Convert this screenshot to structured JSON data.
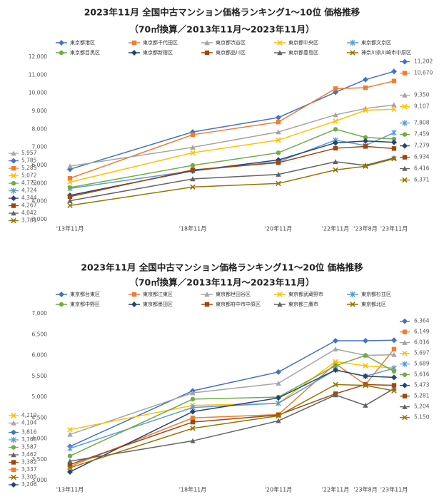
{
  "chart_data": [
    {
      "type": "line",
      "title": "2023年11月 全国中古マンション価格ランキング1～10位 価格推移",
      "subtitle": "（70㎡換算／2013年11月～2023年11月）",
      "categories": [
        "'13年11月",
        "'18年11月",
        "'20年11月",
        "'22年11月",
        "'23年8月",
        "'23年11月"
      ],
      "ylim": [
        3000,
        12000
      ],
      "yticks": [
        {
          "value": 3000,
          "label": "3,000"
        },
        {
          "value": 4000,
          "label": "4,000"
        },
        {
          "value": 5000,
          "label": "5,000"
        },
        {
          "value": 6000,
          "label": "6,000"
        },
        {
          "value": 7000,
          "label": "7,000"
        },
        {
          "value": 8000,
          "label": "8,000"
        },
        {
          "value": 9000,
          "label": "9,000"
        },
        {
          "value": 10000,
          "label": "10,000"
        },
        {
          "value": 11000,
          "label": "11,000"
        },
        {
          "value": 12000,
          "label": "12,000"
        }
      ],
      "grid": false,
      "series": [
        {
          "name": "東京都港区",
          "color": "#4472c4",
          "values": [
            5785,
            7850,
            8650,
            10050,
            10750,
            11202
          ],
          "value_labels": [
            "5,785",
            null,
            null,
            null,
            null,
            "11,202"
          ]
        },
        {
          "name": "東京都千代田区",
          "color": "#ed7d31",
          "values": [
            5285,
            7700,
            8400,
            10250,
            10300,
            10670
          ],
          "value_labels": [
            "5,285",
            null,
            null,
            null,
            null,
            "10,670"
          ]
        },
        {
          "name": "東京都渋谷区",
          "color": "#a5a5a5",
          "values": [
            5957,
            7000,
            7850,
            8800,
            9150,
            9350
          ],
          "value_labels": [
            "5,957",
            null,
            null,
            null,
            null,
            "9,350"
          ]
        },
        {
          "name": "東京都中央区",
          "color": "#ffc000",
          "values": [
            5072,
            6700,
            7400,
            8450,
            9050,
            9107
          ],
          "value_labels": [
            "5,072",
            null,
            null,
            null,
            null,
            "9,107"
          ]
        },
        {
          "name": "東京都文京区",
          "color": "#5b9bd5",
          "values": [
            4724,
            5700,
            6200,
            7400,
            7100,
            7808
          ],
          "value_labels": [
            "4,724",
            null,
            null,
            null,
            null,
            "7,808"
          ]
        },
        {
          "name": "東京都目黒区",
          "color": "#70ad47",
          "values": [
            4773,
            6000,
            6700,
            8000,
            7550,
            7459
          ],
          "value_labels": [
            "4,773",
            null,
            null,
            null,
            null,
            "7,459"
          ]
        },
        {
          "name": "東京都新宿区",
          "color": "#264478",
          "values": [
            4344,
            5700,
            6300,
            7250,
            7350,
            7279
          ],
          "value_labels": [
            "4,344",
            null,
            null,
            null,
            null,
            "7,279"
          ]
        },
        {
          "name": "東京都品川区",
          "color": "#9e480e",
          "values": [
            4267,
            5750,
            6150,
            6950,
            7050,
            6934
          ],
          "value_labels": [
            "4,267",
            null,
            null,
            null,
            null,
            "6,934"
          ]
        },
        {
          "name": "東京都豊島区",
          "color": "#636363",
          "values": [
            4042,
            5250,
            5500,
            6200,
            6000,
            6416
          ],
          "value_labels": [
            "4,042",
            null,
            null,
            null,
            null,
            "6,416"
          ]
        },
        {
          "name": "神奈川県川崎市中原区",
          "color": "#997300",
          "values": [
            3781,
            4800,
            5000,
            5750,
            5950,
            6371
          ],
          "value_labels": [
            "3,781",
            null,
            null,
            null,
            null,
            "6,371"
          ]
        }
      ]
    },
    {
      "type": "line",
      "title": "2023年11月 全国中古マンション価格ランキング11～20位 価格推移",
      "subtitle": "（70㎡換算／2013年11月～2023年11月）",
      "categories": [
        "'13年11月",
        "'18年11月",
        "'20年11月",
        "'22年11月",
        "'23年8月",
        "'23年11月"
      ],
      "ylim": [
        3000,
        7000
      ],
      "yticks": [
        {
          "value": 3000,
          "label": "3,000"
        },
        {
          "value": 3500,
          "label": "3,500"
        },
        {
          "value": 4000,
          "label": "4,000"
        },
        {
          "value": 4500,
          "label": "4,500"
        },
        {
          "value": 5000,
          "label": "5,000"
        },
        {
          "value": 5500,
          "label": "5,500"
        },
        {
          "value": 6000,
          "label": "6,000"
        },
        {
          "value": 6500,
          "label": "6,500"
        },
        {
          "value": 7000,
          "label": "7,000"
        }
      ],
      "grid": false,
      "series": [
        {
          "name": "東京都台東区",
          "color": "#4472c4",
          "values": [
            3816,
            5150,
            5600,
            6350,
            6350,
            6364
          ],
          "value_labels": [
            "3,816",
            null,
            null,
            null,
            null,
            "6,364"
          ]
        },
        {
          "name": "東京都江東区",
          "color": "#ed7d31",
          "values": [
            3337,
            4500,
            4580,
            5800,
            5300,
            6149
          ],
          "value_labels": [
            "3,337",
            null,
            null,
            null,
            null,
            "6,149"
          ]
        },
        {
          "name": "東京都世田谷区",
          "color": "#a5a5a5",
          "values": [
            4104,
            5100,
            5330,
            6150,
            6000,
            6016
          ],
          "value_labels": [
            "4,104",
            null,
            null,
            null,
            null,
            "6,016"
          ]
        },
        {
          "name": "東京都武蔵野市",
          "color": "#ffc000",
          "values": [
            4219,
            4800,
            4850,
            5850,
            5750,
            5697
          ],
          "value_labels": [
            "4,219",
            null,
            null,
            null,
            null,
            "5,697"
          ]
        },
        {
          "name": "東京都杉並区",
          "color": "#5b9bd5",
          "values": [
            3768,
            4750,
            4850,
            5650,
            5500,
            5689
          ],
          "value_labels": [
            "3,768",
            null,
            null,
            null,
            null,
            "5,689"
          ]
        },
        {
          "name": "東京都中野区",
          "color": "#70ad47",
          "values": [
            3587,
            4950,
            5000,
            5750,
            6000,
            5616
          ],
          "value_labels": [
            "3,587",
            null,
            null,
            null,
            null,
            "5,616"
          ]
        },
        {
          "name": "東京都墨田区",
          "color": "#264478",
          "values": [
            3206,
            4650,
            4980,
            5650,
            5500,
            5473
          ],
          "value_labels": [
            "3,206",
            null,
            null,
            null,
            null,
            "5,473"
          ]
        },
        {
          "name": "東京都府中市中原区",
          "color": "#9e480e",
          "values": [
            3382,
            4400,
            4570,
            5080,
            5300,
            5281
          ],
          "value_labels": [
            "3,382",
            null,
            null,
            null,
            null,
            "5,281"
          ]
        },
        {
          "name": "東京都三鷹市",
          "color": "#636363",
          "values": [
            3462,
            3950,
            4430,
            5050,
            4800,
            5204
          ],
          "value_labels": [
            "3,462",
            null,
            null,
            null,
            null,
            "5,204"
          ]
        },
        {
          "name": "東京都北区",
          "color": "#997300",
          "values": [
            3305,
            4250,
            4550,
            5300,
            5280,
            5150
          ],
          "value_labels": [
            "3,305",
            null,
            null,
            null,
            null,
            "5,150"
          ]
        }
      ]
    }
  ]
}
